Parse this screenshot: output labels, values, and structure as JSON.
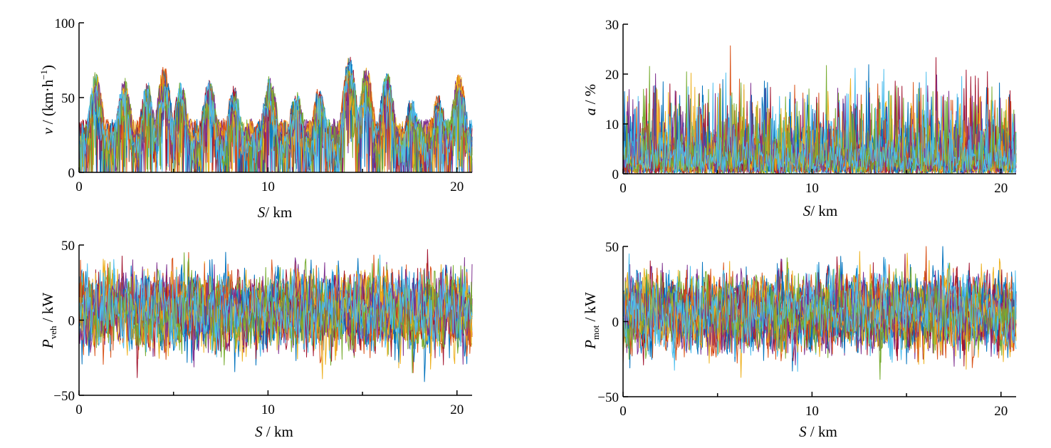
{
  "colors": [
    "#0072BD",
    "#D95319",
    "#EDB120",
    "#7E2F8E",
    "#77AC30",
    "#4DBEEE",
    "#A2142F"
  ],
  "chart_data": [
    {
      "type": "line",
      "xlabel": {
        "var": "S",
        "unit": "/ km"
      },
      "ylabel": {
        "var": "v",
        "unit": " / (km·h",
        "sup": "−1",
        "close": ")"
      },
      "xlim": [
        0,
        20.8
      ],
      "ylim": [
        0,
        100
      ],
      "xticks": [
        0,
        10,
        20
      ],
      "xtick_labels": [
        "0",
        "10",
        "20"
      ],
      "yticks": [
        0,
        50,
        100
      ],
      "ytick_labels": [
        "0",
        "50",
        "100"
      ],
      "series_count": 20,
      "grid": false,
      "legend": "none"
    },
    {
      "type": "line",
      "xlabel": {
        "var": "S",
        "unit": "/ km"
      },
      "ylabel": {
        "var": "a",
        "unit": " / %"
      },
      "xlim": [
        0,
        20.8
      ],
      "ylim": [
        0,
        30
      ],
      "xticks": [
        0,
        10,
        20
      ],
      "xtick_labels": [
        "0",
        "10",
        "20"
      ],
      "yticks": [
        0,
        10,
        20,
        30
      ],
      "ytick_labels": [
        "0",
        "10",
        "20",
        "30"
      ],
      "series_count": 20,
      "grid": false,
      "legend": "none"
    },
    {
      "type": "line",
      "xlabel": {
        "var": "S",
        "unit": " / km"
      },
      "ylabel": {
        "var": "P",
        "sub": "veh",
        "unit": " / kW"
      },
      "xlim": [
        0,
        20.8
      ],
      "ylim": [
        -50,
        50
      ],
      "xticks": [
        0,
        10,
        20
      ],
      "xtick_labels": [
        "0",
        "10",
        "20"
      ],
      "yticks": [
        -50,
        0,
        50
      ],
      "ytick_labels": [
        "−50",
        "0",
        "50"
      ],
      "series_count": 20,
      "grid": false,
      "legend": "none"
    },
    {
      "type": "line",
      "xlabel": {
        "var": "S",
        "unit": " / km"
      },
      "ylabel": {
        "var": "P",
        "sub": "mot",
        "unit": " / kW"
      },
      "xlim": [
        0,
        20.8
      ],
      "ylim": [
        -50,
        50
      ],
      "xticks": [
        0,
        10,
        20
      ],
      "xtick_labels": [
        "0",
        "10",
        "20"
      ],
      "yticks": [
        -50,
        0,
        50
      ],
      "ytick_labels": [
        "−50",
        "0",
        "50"
      ],
      "series_count": 20,
      "grid": false,
      "legend": "none"
    }
  ]
}
